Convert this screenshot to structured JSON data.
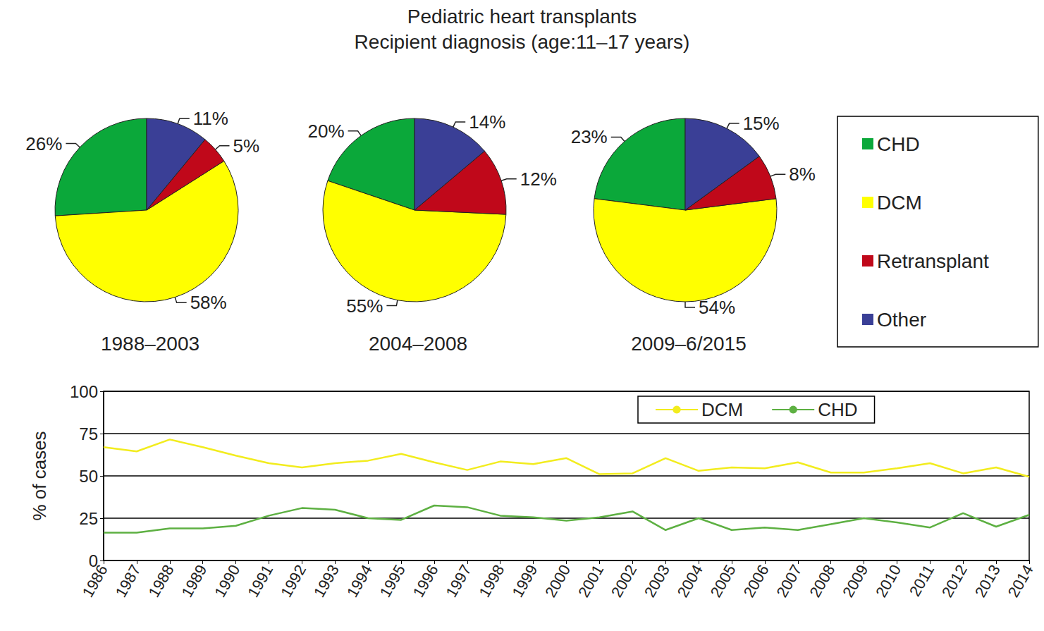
{
  "title": "Pediatric heart transplants",
  "subtitle": "Recipient diagnosis (age:11–17 years)",
  "chart_data": [
    {
      "type": "pie",
      "title": "1988–2003",
      "categories": [
        "CHD",
        "DCM",
        "Retransplant",
        "Other"
      ],
      "values": [
        26,
        58,
        5,
        11
      ],
      "value_labels": [
        "26%",
        "58%",
        "5%",
        "11%"
      ],
      "colors": [
        "#0ba83a",
        "#ffff00",
        "#c0081a",
        "#3a3f96"
      ],
      "data_labels": true
    },
    {
      "type": "pie",
      "title": "2004–2008",
      "categories": [
        "CHD",
        "DCM",
        "Retransplant",
        "Other"
      ],
      "values": [
        20,
        55,
        12,
        14
      ],
      "value_labels": [
        "20%",
        "55%",
        "12%",
        "14%"
      ],
      "colors": [
        "#0ba83a",
        "#ffff00",
        "#c0081a",
        "#3a3f96"
      ],
      "data_labels": true
    },
    {
      "type": "pie",
      "title": "2009–6/2015",
      "categories": [
        "CHD",
        "DCM",
        "Retransplant",
        "Other"
      ],
      "values": [
        23,
        54,
        8,
        15
      ],
      "value_labels": [
        "23%",
        "54%",
        "8%",
        "15%"
      ],
      "colors": [
        "#0ba83a",
        "#ffff00",
        "#c0081a",
        "#3a3f96"
      ],
      "data_labels": true,
      "legend": "right"
    },
    {
      "type": "line",
      "categories": [
        "1986",
        "1987",
        "1988",
        "1989",
        "1990",
        "1991",
        "1992",
        "1993",
        "1994",
        "1995",
        "1996",
        "1997",
        "1998",
        "1999",
        "2000",
        "2001",
        "2002",
        "2003",
        "2004",
        "2005",
        "2006",
        "2007",
        "2008",
        "2009",
        "2010",
        "2011",
        "2012",
        "2013",
        "2014"
      ],
      "ylabel": "% of cases",
      "ylim": [
        0,
        100
      ],
      "yticks": [
        0,
        25,
        50,
        75,
        100
      ],
      "grid": true,
      "legend": "top",
      "series": [
        {
          "name": "DCM",
          "color": "#f2ec1e",
          "values": [
            67,
            64.5,
            71.5,
            67,
            62,
            57.5,
            55,
            57.5,
            59,
            63,
            58,
            53.5,
            58.5,
            57,
            60.5,
            51,
            51.5,
            60.5,
            53,
            55,
            54.5,
            58,
            52,
            52,
            54.5,
            57.5,
            51.5,
            55,
            49.5
          ]
        },
        {
          "name": "CHD",
          "color": "#5db042",
          "values": [
            16.5,
            16.5,
            19,
            19,
            20.5,
            26.5,
            31,
            30,
            25,
            24,
            32.5,
            31.5,
            26.5,
            25.5,
            23.5,
            25.5,
            29,
            18,
            25,
            18,
            19.5,
            18,
            21.5,
            25,
            22.5,
            19.5,
            28,
            20,
            27
          ]
        }
      ]
    }
  ]
}
